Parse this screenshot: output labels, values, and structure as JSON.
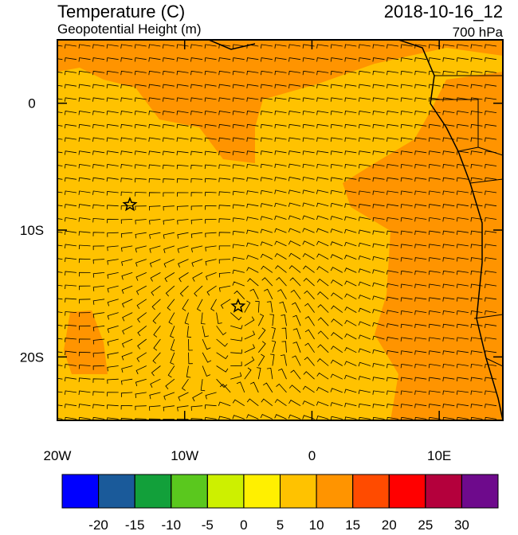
{
  "header": {
    "title": "Temperature (C)",
    "subtitle": "Geopotential Height (m)",
    "date": "2018-10-16_12",
    "level": "700 hPa"
  },
  "map": {
    "lonlim": [
      -20,
      15
    ],
    "latlim": [
      -25,
      5
    ],
    "xticks": [
      {
        "value": -20,
        "label": "20W"
      },
      {
        "value": -10,
        "label": "10W"
      },
      0,
      {
        "value": 10,
        "label": "10E"
      }
    ],
    "yticks": [
      0,
      {
        "value": -10,
        "label": "10S"
      },
      {
        "value": -20,
        "label": "20S"
      }
    ],
    "markers": [
      {
        "lon": -14.3,
        "lat": -8
      },
      {
        "lon": -5.8,
        "lat": -16
      }
    ]
  },
  "colorbar": {
    "levels": [
      -20,
      -15,
      -10,
      -5,
      0,
      5,
      10,
      15,
      20,
      25,
      30
    ],
    "colors": [
      "#0000ff",
      "#1a5a9a",
      "#12a03a",
      "#5ac81e",
      "#cdf000",
      "#fff000",
      "#ffc200",
      "#ff9400",
      "#ff4b00",
      "#ff0000",
      "#b4003c",
      "#6e0a8c"
    ]
  }
}
